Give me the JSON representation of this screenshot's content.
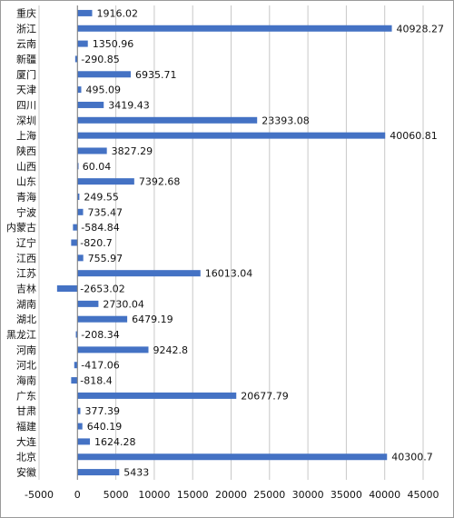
{
  "chart_data": {
    "type": "bar",
    "orientation": "horizontal",
    "title": "",
    "xlabel": "",
    "ylabel": "",
    "xlim": [
      -5000,
      45000
    ],
    "x_ticks": [
      -5000,
      0,
      5000,
      10000,
      15000,
      20000,
      25000,
      30000,
      35000,
      40000,
      45000
    ],
    "grid": "vertical lines on",
    "legend": "none",
    "bar_color": "#4472C4",
    "categories": [
      "重庆",
      "浙江",
      "云南",
      "新疆",
      "厦门",
      "天津",
      "四川",
      "深圳",
      "上海",
      "陕西",
      "山西",
      "山东",
      "青海",
      "宁波",
      "内蒙古",
      "辽宁",
      "江西",
      "江苏",
      "吉林",
      "湖南",
      "湖北",
      "黑龙江",
      "河南",
      "河北",
      "海南",
      "广东",
      "甘肃",
      "福建",
      "大连",
      "北京",
      "安徽"
    ],
    "values": [
      1916.02,
      40928.27,
      1350.96,
      -290.85,
      6935.71,
      495.09,
      3419.43,
      23393.08,
      40060.81,
      3827.29,
      60.04,
      7392.68,
      249.55,
      735.47,
      -584.84,
      -820.7,
      755.97,
      16013.04,
      -2653.02,
      2730.04,
      6479.19,
      -208.34,
      9242.8,
      -417.06,
      -818.4,
      20677.79,
      377.39,
      640.19,
      1624.28,
      40300.7,
      5433
    ],
    "value_labels": [
      "1916.02",
      "40928.27",
      "1350.96",
      "-290.85",
      "6935.71",
      "495.09",
      "3419.43",
      "23393.08",
      "40060.81",
      "3827.29",
      "60.04",
      "7392.68",
      "249.55",
      "735.47",
      "-584.84",
      "-820.7",
      "755.97",
      "16013.04",
      "-2653.02",
      "2730.04",
      "6479.19",
      "-208.34",
      "9242.8",
      "-417.06",
      "-818.4",
      "20677.79",
      "377.39",
      "640.19",
      "1624.28",
      "40300.7",
      "5433"
    ]
  }
}
